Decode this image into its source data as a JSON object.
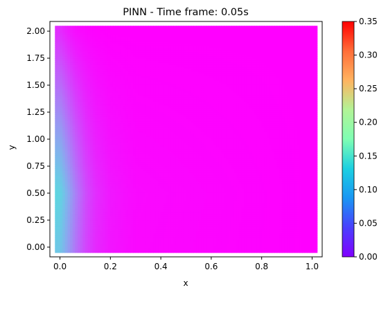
{
  "chart_data": {
    "type": "heatmap",
    "title": "PINN - Time frame: 0.05s",
    "xlabel": "x",
    "ylabel": "y",
    "xlim": [
      -0.04,
      1.04
    ],
    "ylim": [
      -0.09,
      2.09
    ],
    "x_range": [
      -0.02,
      1.02
    ],
    "y_range": [
      -0.05,
      2.05
    ],
    "x_ticks": [
      "0.0",
      "0.2",
      "0.4",
      "0.6",
      "0.8",
      "1.0"
    ],
    "y_ticks": [
      "0.00",
      "0.25",
      "0.50",
      "0.75",
      "1.00",
      "1.25",
      "1.50",
      "1.75",
      "2.00"
    ],
    "colorbar": {
      "colormap": "rainbow",
      "vmin": 0.0,
      "vmax": 0.35,
      "ticks": [
        "0.00",
        "0.05",
        "0.10",
        "0.15",
        "0.20",
        "0.25",
        "0.30",
        "0.35"
      ]
    },
    "field_profile": {
      "x": [
        0.0,
        0.03,
        0.06,
        0.1,
        0.14,
        0.2,
        0.3,
        1.0
      ],
      "value_at_y_0_5": [
        0.11,
        0.085,
        0.06,
        0.035,
        0.02,
        0.01,
        0.004,
        0.0
      ],
      "value_at_y_2_0": [
        0.02,
        0.012,
        0.006,
        0.003,
        0.001,
        0.0,
        0.0,
        0.0
      ]
    },
    "grid": false,
    "legend": "none"
  }
}
